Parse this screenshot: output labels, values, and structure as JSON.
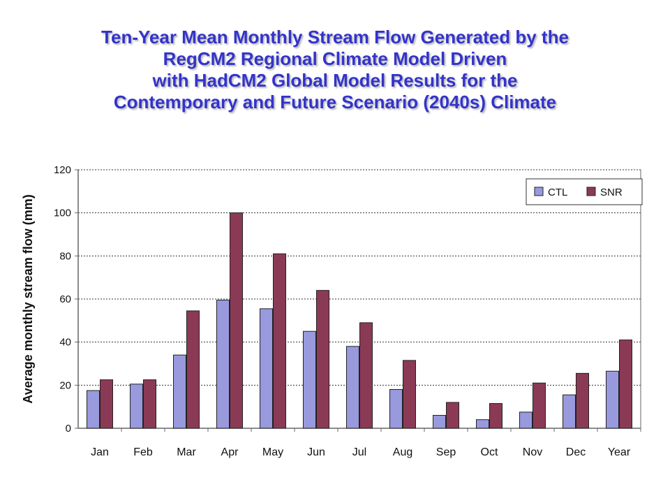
{
  "title_lines": [
    "Ten-Year Mean Monthly Stream Flow Generated by the",
    "RegCM2 Regional Climate Model Driven",
    "with HadCM2 Global Model Results for the",
    "Contemporary and Future Scenario (2040s) Climate"
  ],
  "chart_data": {
    "type": "bar",
    "title": "Ten-Year Mean Monthly Stream Flow Generated by the RegCM2 Regional Climate Model Driven with HadCM2 Global Model Results for the Contemporary and Future Scenario (2040s) Climate",
    "xlabel": "",
    "ylabel": "Average monthly stream flow (mm)",
    "categories": [
      "Jan",
      "Feb",
      "Mar",
      "Apr",
      "May",
      "Jun",
      "Jul",
      "Aug",
      "Sep",
      "Oct",
      "Nov",
      "Dec",
      "Year"
    ],
    "series": [
      {
        "name": "CTL",
        "color": "#9999dd",
        "values": [
          17.5,
          20.5,
          34,
          59.5,
          55.5,
          45,
          38,
          18,
          6,
          4,
          7.5,
          15.5,
          26.5
        ]
      },
      {
        "name": "SNR",
        "color": "#8b3a55",
        "values": [
          22.5,
          22.5,
          54.5,
          100,
          81,
          64,
          49,
          31.5,
          12,
          11.5,
          21,
          25.5,
          41
        ]
      }
    ],
    "ylim": [
      0,
      120
    ],
    "yticks": [
      0,
      20,
      40,
      60,
      80,
      100,
      120
    ],
    "grid": "horizontal dotted",
    "legend_position": "top-right"
  }
}
